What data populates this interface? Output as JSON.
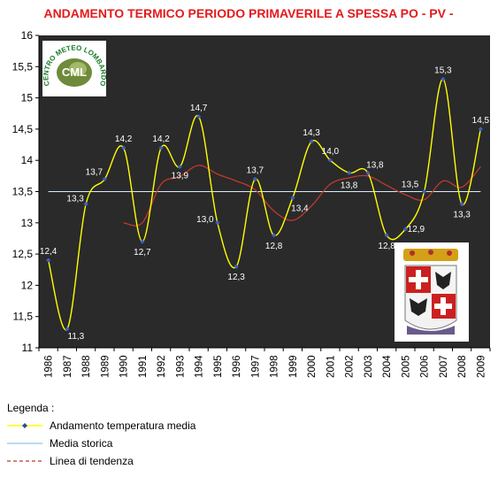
{
  "chart_data": {
    "type": "line",
    "title": "ANDAMENTO TERMICO PERIODO PRIMAVERILE A SPESSA PO - PV -",
    "x": [
      "1986",
      "1987",
      "1988",
      "1989",
      "1990",
      "1991",
      "1992",
      "1993",
      "1994",
      "1995",
      "1996",
      "1997",
      "1998",
      "1999",
      "2000",
      "2001",
      "2002",
      "2003",
      "2004",
      "2005",
      "2006",
      "2007",
      "2008",
      "2009"
    ],
    "ylim": [
      11,
      16
    ],
    "yticks": [
      "11",
      "11,5",
      "12",
      "12,5",
      "13",
      "13,5",
      "14",
      "14,5",
      "15",
      "15,5",
      "16"
    ],
    "grid": false,
    "legend_position": "bottom",
    "series": [
      {
        "name": "Andamento temperatura media",
        "color": "#ffff00",
        "values": [
          12.4,
          11.3,
          13.3,
          13.7,
          14.2,
          12.7,
          14.2,
          13.9,
          14.7,
          13.0,
          12.3,
          13.7,
          12.8,
          13.4,
          14.3,
          14.0,
          13.8,
          13.8,
          12.8,
          12.9,
          13.5,
          15.3,
          13.3,
          14.5
        ],
        "labels": [
          "12,4",
          "11,3",
          "13,3",
          "13,7",
          "14,2",
          "12,7",
          "14,2",
          "13,9",
          "14,7",
          "13,0",
          "12,3",
          "13,7",
          "12,8",
          "13,4",
          "14,3",
          "14,0",
          "13,8",
          "13,8",
          "12,8",
          "12,9",
          "13,5",
          "15,3",
          "13,3",
          "14,5"
        ]
      },
      {
        "name": "Media storica",
        "color": "#c8e6ff",
        "values": [
          13.5,
          13.5,
          13.5,
          13.5,
          13.5,
          13.5,
          13.5,
          13.5,
          13.5,
          13.5,
          13.5,
          13.5,
          13.5,
          13.5,
          13.5,
          13.5,
          13.5,
          13.5,
          13.5,
          13.5,
          13.5,
          13.5,
          13.5,
          13.5
        ]
      },
      {
        "name": "Linea di tendenza",
        "color": "#c0392b",
        "values": [
          null,
          null,
          null,
          null,
          13.0,
          13.0,
          13.62,
          13.74,
          13.92,
          13.78,
          13.67,
          13.53,
          13.19,
          13.04,
          13.27,
          13.62,
          13.72,
          13.75,
          13.6,
          13.45,
          13.37,
          13.67,
          13.57,
          13.9
        ]
      }
    ]
  },
  "legend": {
    "title": "Legenda :",
    "items": [
      {
        "label": "Andamento temperatura media",
        "style": "yellow-marker"
      },
      {
        "label": "Media storica",
        "style": "light-blue-line"
      },
      {
        "label": "Linea di tendenza",
        "style": "red-dash"
      }
    ]
  },
  "logos": {
    "meteo_text": "CENTRO METEO LOMBARDO",
    "meteo_initials": "CML"
  },
  "colors": {
    "plot_background": "#2a2a2a",
    "title": "#e41a1c"
  }
}
